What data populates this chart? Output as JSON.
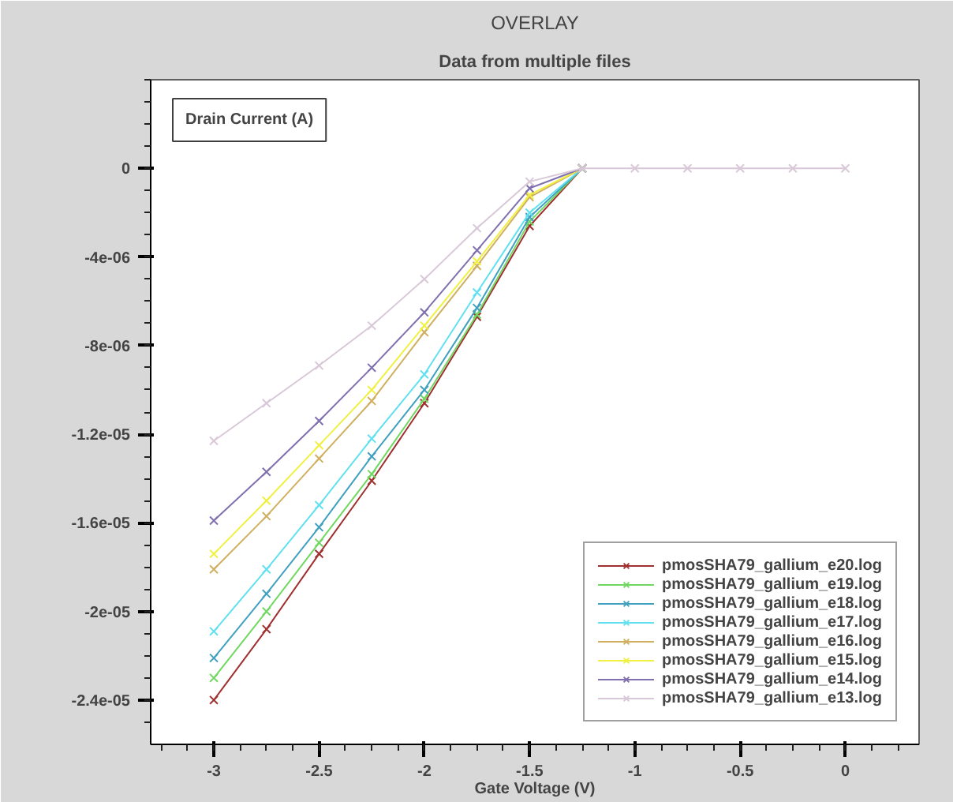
{
  "chart_data": {
    "type": "line",
    "title": "OVERLAY",
    "subtitle": "Data from multiple files",
    "xlabel": "Gate Voltage (V)",
    "ylabel": "Drain Current (A)",
    "x": [
      -3,
      -2.75,
      -2.5,
      -2.25,
      -2,
      -1.75,
      -1.5,
      -1.25,
      -1,
      -0.75,
      -0.5,
      -0.25,
      0
    ],
    "series": [
      {
        "name": "pmosSHA79_gallium_e20.log",
        "color": "#a03030",
        "values": [
          -2.4e-05,
          -2.08e-05,
          -1.74e-05,
          -1.41e-05,
          -1.06e-05,
          -6.7e-06,
          -2.6e-06,
          0,
          null,
          null,
          null,
          null,
          null
        ]
      },
      {
        "name": "pmosSHA79_gallium_e19.log",
        "color": "#70d860",
        "values": [
          -2.3e-05,
          -2e-05,
          -1.69e-05,
          -1.38e-05,
          -1.04e-05,
          -6.6e-06,
          -2.4e-06,
          0,
          null,
          null,
          null,
          null,
          null
        ]
      },
      {
        "name": "pmosSHA79_gallium_e18.log",
        "color": "#40a0c0",
        "values": [
          -2.21e-05,
          -1.92e-05,
          -1.62e-05,
          -1.3e-05,
          -1e-05,
          -6.3e-06,
          -2.2e-06,
          0,
          null,
          null,
          null,
          null,
          null
        ]
      },
      {
        "name": "pmosSHA79_gallium_e17.log",
        "color": "#60e0f0",
        "values": [
          -2.09e-05,
          -1.81e-05,
          -1.52e-05,
          -1.22e-05,
          -9.3e-06,
          -5.6e-06,
          -2e-06,
          0,
          null,
          null,
          null,
          null,
          null
        ]
      },
      {
        "name": "pmosSHA79_gallium_e16.log",
        "color": "#d0b060",
        "values": [
          -1.81e-05,
          -1.57e-05,
          -1.31e-05,
          -1.05e-05,
          -7.4e-06,
          -4.4e-06,
          -1.3e-06,
          0,
          null,
          null,
          null,
          null,
          null
        ]
      },
      {
        "name": "pmosSHA79_gallium_e15.log",
        "color": "#f0f040",
        "values": [
          -1.74e-05,
          -1.5e-05,
          -1.25e-05,
          -1e-05,
          -7.1e-06,
          -4.2e-06,
          -1.2e-06,
          0,
          null,
          null,
          null,
          null,
          null
        ]
      },
      {
        "name": "pmosSHA79_gallium_e14.log",
        "color": "#8070b0",
        "values": [
          -1.59e-05,
          -1.37e-05,
          -1.14e-05,
          -9e-06,
          -6.5e-06,
          -3.7e-06,
          -9e-07,
          0,
          null,
          null,
          null,
          null,
          null
        ]
      },
      {
        "name": "pmosSHA79_gallium_e13.log",
        "color": "#d8c8d8",
        "values": [
          -1.23e-05,
          -1.06e-05,
          -8.9e-06,
          -7.1e-06,
          -5e-06,
          -2.7e-06,
          -6e-07,
          0,
          0,
          0,
          0,
          0,
          0
        ]
      }
    ],
    "xlim": [
      -3.3,
      0.35
    ],
    "xticks": [
      -3,
      -2.5,
      -2,
      -1.5,
      -1,
      -0.5,
      0
    ],
    "ylim": [
      -2.6e-05,
      4e-06
    ],
    "yticks": [
      {
        "value": -2.4e-05,
        "label": "-2.4e-05"
      },
      {
        "value": -2e-05,
        "label": "-2e-05"
      },
      {
        "value": -1.6e-05,
        "label": "-1.6e-05"
      },
      {
        "value": -1.2e-05,
        "label": "-1.2e-05"
      },
      {
        "value": -8e-06,
        "label": "-8e-06"
      },
      {
        "value": -4e-06,
        "label": "-4e-06"
      },
      {
        "value": 0,
        "label": "0"
      }
    ],
    "grid": false,
    "legend": "bottom right",
    "marker": "cross",
    "line_style": "solid"
  }
}
